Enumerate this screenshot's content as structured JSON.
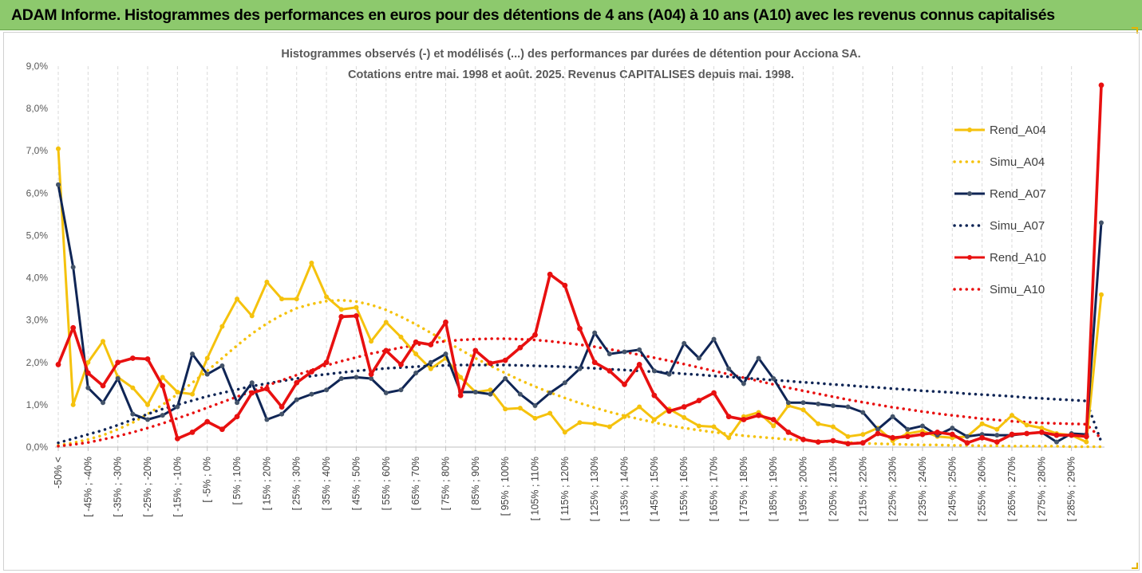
{
  "banner": {
    "title": "ADAM Informe. Histogrammes des performances en euros pour des détentions de 4 ans (A04) à 10 ans (A10) avec les revenus connus capitalisés"
  },
  "chart_data": {
    "type": "line",
    "title": "Histogrammes observés (-) et modélisés (...) des performances par durées de détention pour Acciona SA.",
    "subtitle": "Cotations entre mai. 1998 et août. 2025. Revenus CAPITALISES depuis mai. 1998.",
    "xlabel": "",
    "ylabel": "",
    "ylim": [
      0,
      9
    ],
    "y_ticks": [
      "0,0%",
      "1,0%",
      "2,0%",
      "3,0%",
      "4,0%",
      "5,0%",
      "6,0%",
      "7,0%",
      "8,0%",
      "9,0%"
    ],
    "x_labels": [
      "-50% <",
      "[ -45% ; -40%",
      "[ -35% ; -30%",
      "[ -25% ; -20%",
      "[ -15% ; -10%",
      "[ -5% ; 0%",
      "[ 5% ; 10%",
      "[ 15% ; 20%",
      "[ 25% ; 30%",
      "[ 35% ; 40%",
      "[ 45% ; 50%",
      "[ 55% ; 60%",
      "[ 65% ; 70%",
      "[ 75% ; 80%",
      "[ 85% ; 90%",
      "[ 95% ; 100%",
      "[ 105% ; 110%",
      "[ 115% ; 120%",
      "[ 125% ; 130%",
      "[ 135% ; 140%",
      "[ 145% ; 150%",
      "[ 155% ; 160%",
      "[ 165% ; 170%",
      "[ 175% ; 180%",
      "[ 185% ; 190%",
      "[ 195% ; 200%",
      "[ 205% ; 210%",
      "[ 215% ; 220%",
      "[ 225% ; 230%",
      "[ 235% ; 240%",
      "[ 245% ; 250%",
      "[ 255% ; 260%",
      "[ 265% ; 270%",
      "[ 275% ; 280%",
      "[ 285% ; 290%"
    ],
    "grid": "vertical dashed",
    "legend_position": "right",
    "series": [
      {
        "name": "Rend_A04",
        "style": "solid",
        "color": "#f5c20d",
        "values": [
          7.05,
          1.0,
          2.0,
          2.5,
          1.65,
          1.4,
          1.0,
          1.65,
          1.3,
          1.25,
          2.1,
          2.85,
          3.5,
          3.1,
          3.9,
          3.5,
          3.5,
          4.35,
          3.55,
          3.25,
          3.3,
          2.5,
          2.95,
          2.6,
          2.2,
          1.85,
          2.1,
          1.65,
          1.3,
          1.35,
          0.9,
          0.92,
          0.68,
          0.8,
          0.35,
          0.58,
          0.55,
          0.48,
          0.72,
          0.95,
          0.65,
          0.9,
          0.7,
          0.5,
          0.48,
          0.22,
          0.72,
          0.82,
          0.5,
          0.98,
          0.88,
          0.55,
          0.48,
          0.25,
          0.3,
          0.45,
          0.15,
          0.32,
          0.38,
          0.25,
          0.22,
          0.25,
          0.55,
          0.42,
          0.75,
          0.52,
          0.45,
          0.32,
          0.28,
          0.12,
          3.6
        ]
      },
      {
        "name": "Simu_A04",
        "style": "dotted",
        "color": "#f5c20d",
        "values": [
          0.04,
          0.1,
          0.18,
          0.28,
          0.42,
          0.58,
          0.78,
          1.0,
          1.25,
          1.52,
          1.8,
          2.1,
          2.4,
          2.68,
          2.92,
          3.12,
          3.28,
          3.38,
          3.45,
          3.47,
          3.44,
          3.36,
          3.24,
          3.08,
          2.9,
          2.7,
          2.5,
          2.3,
          2.1,
          1.92,
          1.75,
          1.58,
          1.43,
          1.29,
          1.16,
          1.04,
          0.93,
          0.83,
          0.74,
          0.66,
          0.58,
          0.51,
          0.45,
          0.4,
          0.35,
          0.31,
          0.27,
          0.24,
          0.21,
          0.18,
          0.16,
          0.14,
          0.12,
          0.11,
          0.09,
          0.08,
          0.07,
          0.06,
          0.05,
          0.05,
          0.04,
          0.04,
          0.03,
          0.03,
          0.02,
          0.02,
          0.02,
          0.02,
          0.01,
          0.01,
          0.01
        ]
      },
      {
        "name": "Rend_A07",
        "style": "solid",
        "color": "#0f2555",
        "values": [
          6.2,
          4.25,
          1.4,
          1.05,
          1.62,
          0.78,
          0.65,
          0.75,
          0.95,
          2.2,
          1.72,
          1.92,
          1.05,
          1.52,
          0.65,
          0.78,
          1.12,
          1.25,
          1.35,
          1.62,
          1.65,
          1.62,
          1.28,
          1.35,
          1.75,
          2.0,
          2.2,
          1.3,
          1.3,
          1.25,
          1.62,
          1.25,
          0.98,
          1.28,
          1.52,
          1.85,
          2.7,
          2.2,
          2.25,
          2.3,
          1.8,
          1.72,
          2.45,
          2.1,
          2.55,
          1.85,
          1.5,
          2.1,
          1.62,
          1.05,
          1.05,
          1.02,
          0.98,
          0.95,
          0.82,
          0.42,
          0.72,
          0.42,
          0.5,
          0.28,
          0.45,
          0.25,
          0.3,
          0.28,
          0.28,
          0.32,
          0.35,
          0.12,
          0.32,
          0.3,
          5.3
        ]
      },
      {
        "name": "Simu_A07",
        "style": "dotted",
        "color": "#0f2555",
        "values": [
          0.1,
          0.2,
          0.3,
          0.4,
          0.52,
          0.65,
          0.78,
          0.9,
          1.0,
          1.1,
          1.2,
          1.28,
          1.36,
          1.44,
          1.5,
          1.56,
          1.62,
          1.68,
          1.72,
          1.76,
          1.8,
          1.83,
          1.86,
          1.88,
          1.9,
          1.92,
          1.93,
          1.94,
          1.94,
          1.94,
          1.94,
          1.93,
          1.92,
          1.91,
          1.9,
          1.88,
          1.86,
          1.84,
          1.82,
          1.8,
          1.78,
          1.76,
          1.73,
          1.71,
          1.68,
          1.66,
          1.63,
          1.61,
          1.58,
          1.56,
          1.53,
          1.51,
          1.48,
          1.46,
          1.43,
          1.41,
          1.38,
          1.36,
          1.33,
          1.31,
          1.29,
          1.26,
          1.24,
          1.22,
          1.2,
          1.17,
          1.15,
          1.13,
          1.11,
          1.09,
          0.12
        ]
      },
      {
        "name": "Rend_A10",
        "style": "solid",
        "color": "#e81010",
        "values": [
          1.95,
          2.82,
          1.75,
          1.45,
          2.0,
          2.1,
          2.08,
          1.45,
          0.2,
          0.35,
          0.6,
          0.42,
          0.72,
          1.28,
          1.38,
          0.95,
          1.52,
          1.78,
          2.0,
          3.08,
          3.1,
          1.72,
          2.28,
          1.95,
          2.48,
          2.42,
          2.95,
          1.22,
          2.28,
          1.98,
          2.05,
          2.35,
          2.65,
          4.08,
          3.82,
          2.8,
          2.0,
          1.8,
          1.48,
          1.95,
          1.22,
          0.85,
          0.95,
          1.1,
          1.28,
          0.72,
          0.65,
          0.75,
          0.65,
          0.35,
          0.18,
          0.12,
          0.15,
          0.08,
          0.1,
          0.32,
          0.22,
          0.25,
          0.3,
          0.35,
          0.3,
          0.1,
          0.22,
          0.12,
          0.3,
          0.32,
          0.35,
          0.28,
          0.28,
          0.25,
          8.55
        ]
      },
      {
        "name": "Simu_A10",
        "style": "dotted",
        "color": "#e81010",
        "values": [
          0.02,
          0.06,
          0.11,
          0.18,
          0.26,
          0.35,
          0.45,
          0.56,
          0.68,
          0.8,
          0.93,
          1.06,
          1.19,
          1.32,
          1.45,
          1.58,
          1.7,
          1.82,
          1.93,
          2.03,
          2.12,
          2.21,
          2.28,
          2.35,
          2.41,
          2.46,
          2.5,
          2.53,
          2.55,
          2.56,
          2.56,
          2.55,
          2.53,
          2.5,
          2.46,
          2.42,
          2.37,
          2.31,
          2.25,
          2.18,
          2.11,
          2.04,
          1.96,
          1.88,
          1.8,
          1.72,
          1.64,
          1.56,
          1.48,
          1.4,
          1.33,
          1.26,
          1.19,
          1.12,
          1.06,
          1.0,
          0.94,
          0.89,
          0.84,
          0.79,
          0.75,
          0.71,
          0.67,
          0.64,
          0.61,
          0.59,
          0.57,
          0.56,
          0.55,
          0.54,
          0.2
        ]
      }
    ]
  }
}
